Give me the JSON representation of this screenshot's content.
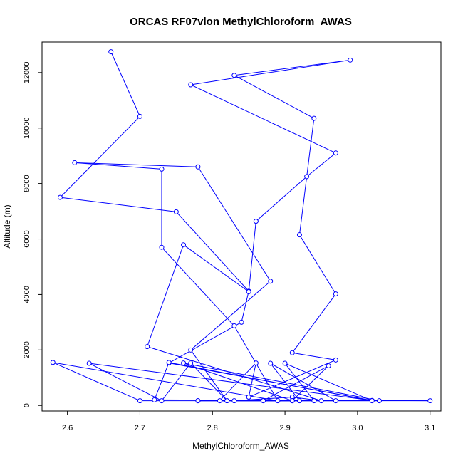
{
  "chart_data": {
    "type": "line",
    "title": "ORCAS RF07vlon MethylChloroform_AWAS",
    "xlabel": "MethylChloroform_AWAS",
    "ylabel": "Altitude (m)",
    "xlim": [
      2.565,
      3.115
    ],
    "ylim": [
      -200,
      13100
    ],
    "xticks": [
      2.6,
      2.7,
      2.8,
      2.9,
      3.0,
      3.1
    ],
    "yticks": [
      0,
      2000,
      4000,
      6000,
      8000,
      10000,
      12000
    ],
    "xtick_labels": [
      "2.6",
      "2.7",
      "2.8",
      "2.9",
      "3.0",
      "3.1"
    ],
    "ytick_labels": [
      "0",
      "2000",
      "4000",
      "6000",
      "8000",
      "10000",
      "12000"
    ],
    "grid": false,
    "legend": "none",
    "colors": {
      "series": "#0000ff",
      "axes": "#000000"
    },
    "series": [
      {
        "points": [
          [
            2.66,
            12750
          ],
          [
            2.7,
            10420
          ],
          [
            2.59,
            7500
          ],
          [
            2.75,
            6980
          ],
          [
            2.85,
            4120
          ],
          [
            2.84,
            3000
          ],
          [
            2.74,
            1530
          ],
          [
            3.02,
            180
          ],
          [
            2.63,
            1520
          ],
          [
            2.73,
            170
          ],
          [
            2.77,
            1530
          ],
          [
            2.82,
            170
          ],
          [
            2.77,
            2000
          ],
          [
            2.88,
            4480
          ],
          [
            2.78,
            8600
          ],
          [
            2.61,
            8750
          ],
          [
            2.73,
            8520
          ],
          [
            2.73,
            5700
          ],
          [
            2.83,
            2870
          ],
          [
            2.89,
            170
          ],
          [
            2.58,
            1550
          ],
          [
            2.7,
            170
          ],
          [
            3.1,
            170
          ],
          [
            2.72,
            200
          ],
          [
            2.74,
            1550
          ],
          [
            3.02,
            170
          ],
          [
            2.9,
            1520
          ],
          [
            2.94,
            170
          ],
          [
            2.81,
            170
          ],
          [
            2.86,
            1530
          ],
          [
            2.85,
            300
          ],
          [
            2.97,
            1640
          ],
          [
            2.91,
            1900
          ],
          [
            2.97,
            4020
          ],
          [
            2.92,
            6150
          ],
          [
            2.94,
            10350
          ],
          [
            2.83,
            11900
          ],
          [
            2.99,
            12450
          ],
          [
            2.77,
            11560
          ],
          [
            2.97,
            9100
          ],
          [
            2.93,
            8250
          ],
          [
            2.86,
            6640
          ],
          [
            2.85,
            4100
          ],
          [
            2.76,
            5790
          ],
          [
            2.71,
            2120
          ],
          [
            2.95,
            170
          ],
          [
            2.91,
            300
          ],
          [
            2.83,
            170
          ],
          [
            2.92,
            170
          ],
          [
            2.88,
            1520
          ],
          [
            2.97,
            170
          ],
          [
            2.78,
            170
          ],
          [
            2.91,
            170
          ],
          [
            2.96,
            1430
          ],
          [
            2.87,
            170
          ],
          [
            3.03,
            170
          ],
          [
            2.76,
            1530
          ],
          [
            2.91,
            170
          ],
          [
            2.78,
            170
          ],
          [
            2.82,
            170
          ]
        ]
      }
    ]
  }
}
